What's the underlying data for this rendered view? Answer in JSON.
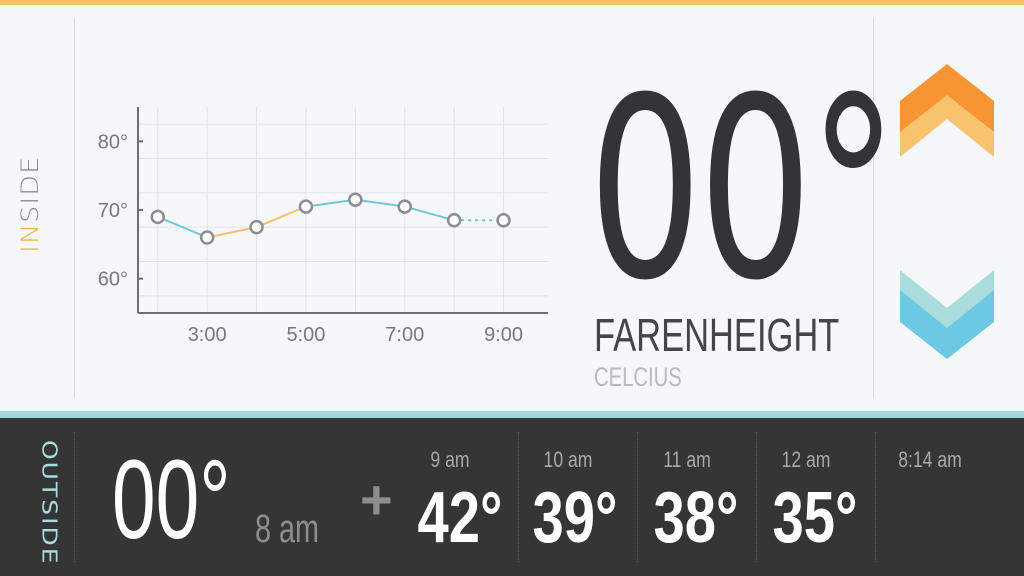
{
  "inside": {
    "label_highlight": "IN",
    "label_rest": "SIDE"
  },
  "chart_data": {
    "type": "line",
    "x": [
      2,
      3,
      4,
      5,
      6,
      7,
      8,
      9
    ],
    "values": [
      69,
      66,
      67.5,
      70.5,
      71.5,
      70.5,
      68.5,
      68.5
    ],
    "segment_colors": [
      "#6cc9dc",
      "#f5c26b",
      "#f5c26b",
      "#6cc9dc",
      "#6cc9dc",
      "#6cc9dc",
      "#6cc9dc"
    ],
    "segment_styles": [
      "solid",
      "solid",
      "solid",
      "solid",
      "solid",
      "solid",
      "dotted"
    ],
    "x_tick_labels": [
      {
        "x": 3,
        "label": "3:00"
      },
      {
        "x": 5,
        "label": "5:00"
      },
      {
        "x": 7,
        "label": "7:00"
      },
      {
        "x": 9,
        "label": "9:00"
      }
    ],
    "y_tick_labels": [
      {
        "y": 80,
        "label": "80°"
      },
      {
        "y": 70,
        "label": "70°"
      },
      {
        "y": 60,
        "label": "60°"
      }
    ],
    "xlim": [
      1.6,
      9.9
    ],
    "ylim": [
      55,
      85
    ],
    "grid": true,
    "title": "",
    "xlabel": "",
    "ylabel": ""
  },
  "current": {
    "temp": "00°",
    "unit_primary": "FARENHEIGHT",
    "unit_secondary": "CELCIUS"
  },
  "controls": {
    "up_colors": [
      "#f79533",
      "#f8c36f"
    ],
    "down_colors": [
      "#a9dcdc",
      "#6dc9e3"
    ]
  },
  "outside": {
    "label": "OUTSIDE",
    "temp": "00°",
    "time": "8 am",
    "plus": "+",
    "forecast": [
      {
        "time": "9 am",
        "temp": "42°"
      },
      {
        "time": "10 am",
        "temp": "39°"
      },
      {
        "time": "11 am",
        "temp": "38°"
      },
      {
        "time": "12 am",
        "temp": "35°"
      },
      {
        "time": "8:14 am",
        "temp": ""
      }
    ]
  },
  "colors": {
    "accent_orange": "#f5c26b",
    "accent_teal": "#a4d9d8",
    "dark_panel": "#353536"
  }
}
